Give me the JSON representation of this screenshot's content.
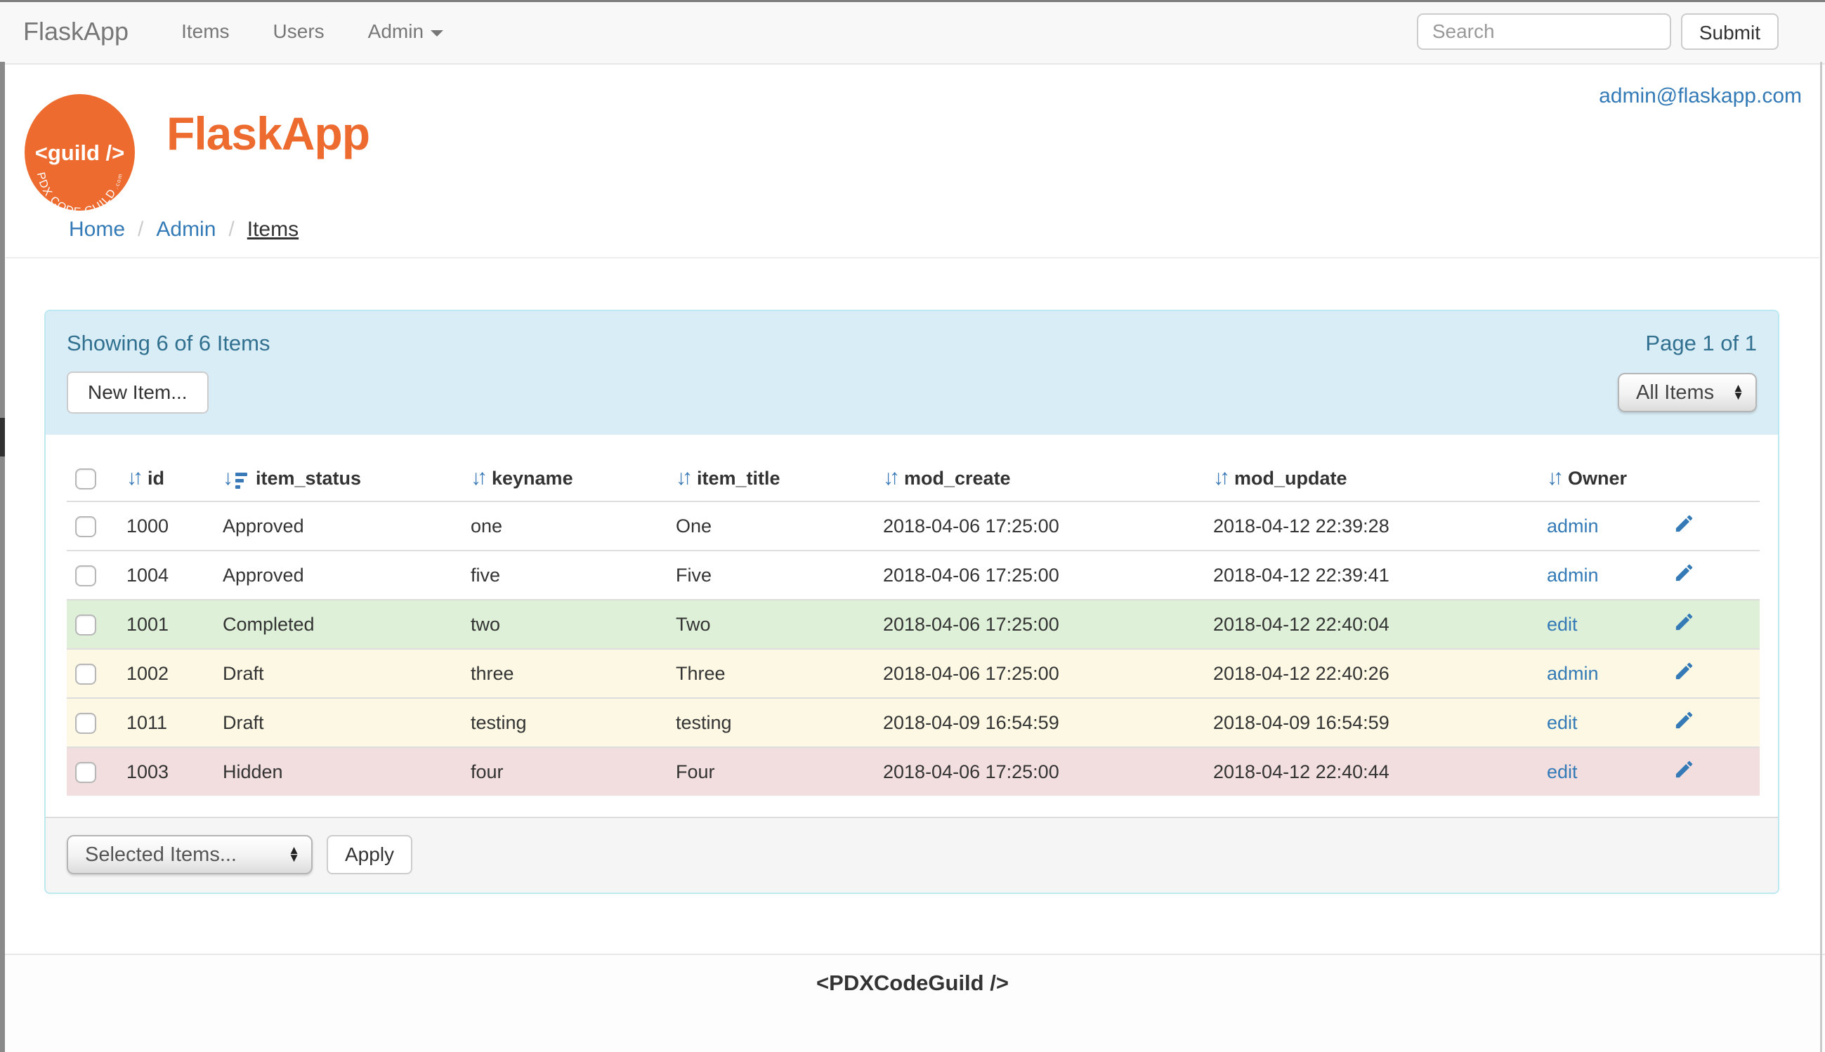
{
  "navbar": {
    "brand": "FlaskApp",
    "items": [
      {
        "label": "Items"
      },
      {
        "label": "Users"
      },
      {
        "label": "Admin",
        "caret": true
      }
    ],
    "search_placeholder": "Search",
    "submit_label": "Submit"
  },
  "masthead": {
    "title": "FlaskApp",
    "user_email": "admin@flaskapp.com",
    "logo": {
      "main_text": "<guild />",
      "arc_text": "PDX CODE GUILD",
      "arc_suffix": ".com",
      "color": "#ED6B2F"
    }
  },
  "breadcrumb": {
    "separator": "/",
    "items": [
      {
        "label": "Home",
        "active": false
      },
      {
        "label": "Admin",
        "active": false
      },
      {
        "label": "Items",
        "active": true
      }
    ]
  },
  "panel": {
    "showing_text": "Showing 6 of 6 Items",
    "page_text": "Page 1 of 1",
    "new_item_label": "New Item...",
    "filter_select_value": "All Items",
    "bulk_select_value": "Selected Items...",
    "apply_label": "Apply"
  },
  "table": {
    "columns": [
      {
        "key": "id",
        "label": "id",
        "sort_icon": "both"
      },
      {
        "key": "item_status",
        "label": "item_status",
        "sort_icon": "amount-desc"
      },
      {
        "key": "keyname",
        "label": "keyname",
        "sort_icon": "both"
      },
      {
        "key": "item_title",
        "label": "item_title",
        "sort_icon": "both"
      },
      {
        "key": "mod_create",
        "label": "mod_create",
        "sort_icon": "both"
      },
      {
        "key": "mod_update",
        "label": "mod_update",
        "sort_icon": "both"
      },
      {
        "key": "owner",
        "label": "Owner",
        "sort_icon": "both"
      }
    ],
    "rows": [
      {
        "id": "1000",
        "item_status": "Approved",
        "keyname": "one",
        "item_title": "One",
        "mod_create": "2018-04-06 17:25:00",
        "mod_update": "2018-04-12 22:39:28",
        "owner": "admin",
        "row_style": "default"
      },
      {
        "id": "1004",
        "item_status": "Approved",
        "keyname": "five",
        "item_title": "Five",
        "mod_create": "2018-04-06 17:25:00",
        "mod_update": "2018-04-12 22:39:41",
        "owner": "admin",
        "row_style": "default"
      },
      {
        "id": "1001",
        "item_status": "Completed",
        "keyname": "two",
        "item_title": "Two",
        "mod_create": "2018-04-06 17:25:00",
        "mod_update": "2018-04-12 22:40:04",
        "owner": "edit",
        "row_style": "success"
      },
      {
        "id": "1002",
        "item_status": "Draft",
        "keyname": "three",
        "item_title": "Three",
        "mod_create": "2018-04-06 17:25:00",
        "mod_update": "2018-04-12 22:40:26",
        "owner": "admin",
        "row_style": "warning"
      },
      {
        "id": "1011",
        "item_status": "Draft",
        "keyname": "testing",
        "item_title": "testing",
        "mod_create": "2018-04-09 16:54:59",
        "mod_update": "2018-04-09 16:54:59",
        "owner": "edit",
        "row_style": "warning"
      },
      {
        "id": "1003",
        "item_status": "Hidden",
        "keyname": "four",
        "item_title": "Four",
        "mod_create": "2018-04-06 17:25:00",
        "mod_update": "2018-04-12 22:40:44",
        "owner": "edit",
        "row_style": "danger"
      }
    ]
  },
  "footer": {
    "text": "<PDXCodeGuild />"
  },
  "colors": {
    "accent_orange": "#ED6B2F",
    "link_blue": "#337ab7",
    "panel_border": "#bce8f1",
    "panel_heading_bg": "#d9edf7",
    "panel_heading_text": "#31708f",
    "row_success": "#dff0d8",
    "row_warning": "#fcf8e3",
    "row_danger": "#f2dede"
  }
}
